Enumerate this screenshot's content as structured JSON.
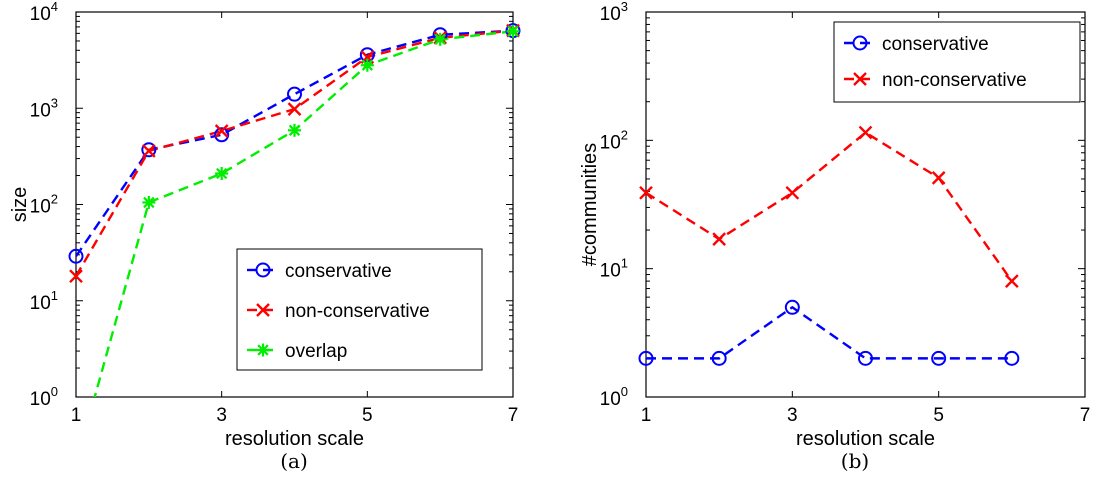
{
  "chart_data": [
    {
      "type": "line",
      "caption": "(a)",
      "xlabel": "resolution scale",
      "ylabel": "size",
      "yscale": "log",
      "xlim": [
        1,
        7
      ],
      "ylim": [
        1,
        10000
      ],
      "xticks": [
        "1",
        "3",
        "5",
        "7"
      ],
      "yticks": [
        {
          "value": 1,
          "base": "10",
          "exp": "0"
        },
        {
          "value": 10,
          "base": "10",
          "exp": "1"
        },
        {
          "value": 100,
          "base": "10",
          "exp": "2"
        },
        {
          "value": 1000,
          "base": "10",
          "exp": "3"
        },
        {
          "value": 10000,
          "base": "10",
          "exp": "4"
        }
      ],
      "grid": false,
      "legend_position": "bottom-right",
      "series": [
        {
          "name": "conservative",
          "color": "#0000ff",
          "marker": "circle",
          "x": [
            1,
            2,
            3,
            4,
            5,
            6,
            7
          ],
          "y": [
            29,
            370,
            530,
            1400,
            3600,
            5800,
            6400
          ]
        },
        {
          "name": "non-conservative",
          "color": "#ff0000",
          "marker": "x",
          "x": [
            1,
            2,
            3,
            4,
            5,
            6,
            7
          ],
          "y": [
            18,
            360,
            580,
            980,
            3400,
            5400,
            6400
          ]
        },
        {
          "name": "overlap",
          "color": "#00ee00",
          "marker": "star",
          "x": [
            1,
            2,
            3,
            4,
            5,
            6,
            7
          ],
          "y": [
            0.2,
            105,
            210,
            590,
            2800,
            5200,
            6300
          ]
        }
      ]
    },
    {
      "type": "line",
      "caption": "(b)",
      "xlabel": "resolution scale",
      "ylabel": "#communities",
      "yscale": "log",
      "xlim": [
        1,
        7
      ],
      "ylim": [
        1,
        1000
      ],
      "xticks": [
        "1",
        "3",
        "5",
        "7"
      ],
      "yticks": [
        {
          "value": 1,
          "base": "10",
          "exp": "0"
        },
        {
          "value": 10,
          "base": "10",
          "exp": "1"
        },
        {
          "value": 100,
          "base": "10",
          "exp": "2"
        },
        {
          "value": 1000,
          "base": "10",
          "exp": "3"
        }
      ],
      "grid": false,
      "legend_position": "top-right",
      "series": [
        {
          "name": "conservative",
          "color": "#0000ff",
          "marker": "circle",
          "x": [
            1,
            2,
            3,
            4,
            5,
            6
          ],
          "y": [
            2,
            2,
            5,
            2,
            2,
            2
          ]
        },
        {
          "name": "non-conservative",
          "color": "#ff0000",
          "marker": "x",
          "x": [
            1,
            2,
            3,
            4,
            5,
            6
          ],
          "y": [
            39,
            17,
            39,
            115,
            51,
            8
          ]
        }
      ]
    }
  ]
}
